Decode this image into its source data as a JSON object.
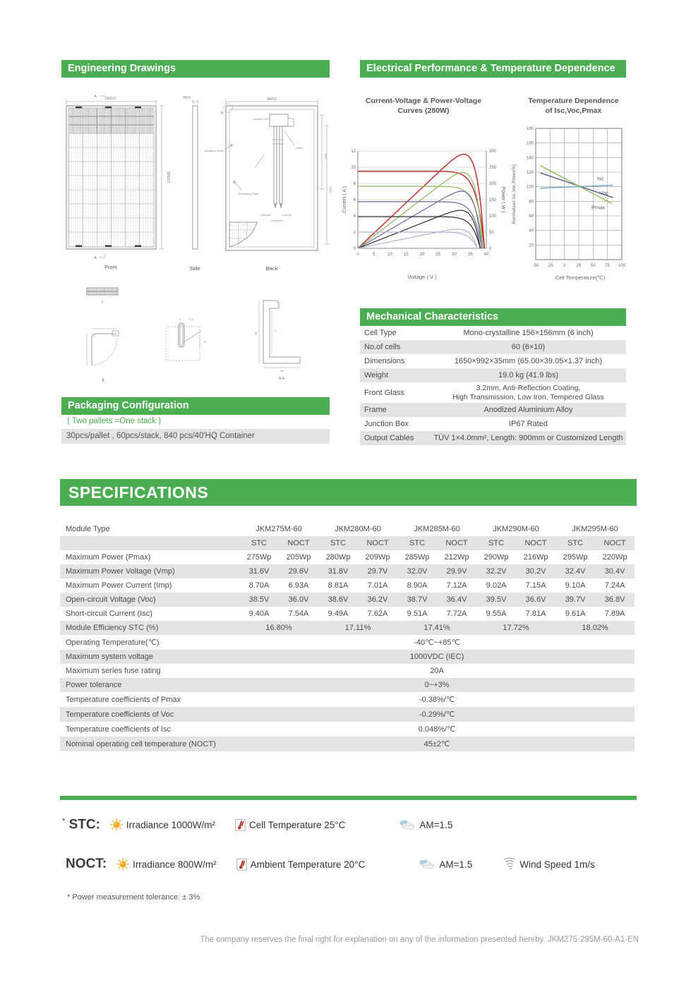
{
  "engineering": {
    "title": "Engineering Drawings",
    "front_label": "Front",
    "side_label": "Side",
    "back_label": "Back",
    "dims": {
      "front_w": "992±2",
      "front_h": "1650±2",
      "side_t": "35±1",
      "back_w": "942±2",
      "back_d1": "990",
      "back_d2": "1360",
      "a_top": "A",
      "a_bottom": "A",
      "sec1": "I",
      "sec2": "II",
      "d9": "9",
      "d55": "5.5",
      "d14": "14",
      "f35": "35",
      "f77": "7.7",
      "fb35": "35",
      "aa": "A-A"
    },
    "back_labels": {
      "junction": "Junction box",
      "label": "Label",
      "installing": "Installing Holes",
      "grounding": "Grounding Holes",
      "cathode": "Cathode -",
      "anode": "+ Anode",
      "connector": "Connector"
    }
  },
  "electrical": {
    "title": "Electrical Performance & Temperature Dependence",
    "iv_title": "Current-Voltage & Power-Voltage\nCurves (280W)",
    "temp_title": "Temperature Dependence\nof Isc,Voc,Pmax"
  },
  "mechanical": {
    "title": "Mechanical Characteristics",
    "rows": [
      {
        "label": "Cell Type",
        "value": "Mono-crystalline  156×156mm (6 inch)"
      },
      {
        "label": "No.of cells",
        "value": "60 (6×10)"
      },
      {
        "label": "Dimensions",
        "value": "1650×992×35mm (65.00×39.05×1.37 inch)"
      },
      {
        "label": "Weight",
        "value": "19.0 kg (41.9 lbs)"
      },
      {
        "label": "Front Glass",
        "value": "3.2mm, Anti-Reflection Coating,\nHigh Transmission, Low Iron, Tempered Glass"
      },
      {
        "label": "Frame",
        "value": "Anodized Aluminium Alloy"
      },
      {
        "label": "Junction Box",
        "value": "IP67 Rated"
      },
      {
        "label": "Output Cables",
        "value": "TÜV 1×4.0mm², Length: 900mm or Customized Length"
      }
    ]
  },
  "packaging": {
    "title": "Packaging Configuration",
    "note": "( Two pallets =One stack )",
    "detail": "30pcs/pallet , 60pcs/stack, 840 pcs/40'HQ Container"
  },
  "specifications": {
    "title": "SPECIFICATIONS",
    "module_type_label": "Module Type",
    "modules": [
      "JKM275M-60",
      "JKM280M-60",
      "JKM285M-60",
      "JKM290M-60",
      "JKM295M-60"
    ],
    "sub_headers": [
      "STC",
      "NOCT"
    ],
    "paired_rows": [
      {
        "label": "Maximum Power (Pmax)",
        "values": [
          "275Wp",
          "205Wp",
          "280Wp",
          "209Wp",
          "285Wp",
          "212Wp",
          "290Wp",
          "216Wp",
          "295Wp",
          "220Wp"
        ]
      },
      {
        "label": "Maximum Power Voltage (Vmp)",
        "values": [
          "31.6V",
          "29.6V",
          "31.8V",
          "29.7V",
          "32.0V",
          "29.9V",
          "32.2V",
          "30.2V",
          "32.4V",
          "30.4V"
        ]
      },
      {
        "label": "Maximum Power Current (Imp)",
        "values": [
          "8.70A",
          "6.93A",
          "8.81A",
          "7.01A",
          "8.90A",
          "7.12A",
          "9.02A",
          "7.15A",
          "9.10A",
          "7.24A"
        ]
      },
      {
        "label": "Open-circuit Voltage (Voc)",
        "values": [
          "38.5V",
          "36.0V",
          "38.6V",
          "36.2V",
          "38.7V",
          "36.4V",
          "39.5V",
          "36.6V",
          "39.7V",
          "36.8V"
        ]
      },
      {
        "label": "Short-circuit Current (Isc)",
        "values": [
          "9.40A",
          "7.54A",
          "9.49A",
          "7.62A",
          "9.51A",
          "7.72A",
          "9.55A",
          "7.81A",
          "9.61A",
          "7.89A"
        ]
      }
    ],
    "efficiency_row": {
      "label": "Module Efficiency STC (%)",
      "values": [
        "16.80%",
        "17.11%",
        "17.41%",
        "17.72%",
        "18.02%"
      ]
    },
    "single_rows": [
      {
        "label": "Operating Temperature(℃)",
        "value": "-40℃~+85℃"
      },
      {
        "label": "Maximum system voltage",
        "value": "1000VDC (IEC)"
      },
      {
        "label": "Maximum series fuse rating",
        "value": "20A"
      },
      {
        "label": "Power tolerance",
        "value": "0~+3%"
      },
      {
        "label": "Temperature coefficients of Pmax",
        "value": "-0.38%/℃"
      },
      {
        "label": "Temperature coefficients of Voc",
        "value": "-0.29%/℃"
      },
      {
        "label": "Temperature coefficients of Isc",
        "value": "0.048%/℃"
      },
      {
        "label": "Nominal operating cell temperature  (NOCT)",
        "value": "45±2℃"
      }
    ]
  },
  "test_conditions": {
    "stc": {
      "prefix": "*",
      "label": "STC:",
      "items": [
        {
          "icon": "sun-icon",
          "text": "Irradiance 1000W/m²"
        },
        {
          "icon": "thermometer-icon",
          "text": "Cell Temperature 25°C"
        },
        {
          "icon": "cloud-icon",
          "text": "AM=1.5"
        }
      ]
    },
    "noct": {
      "label": "NOCT:",
      "items": [
        {
          "icon": "sun-icon",
          "text": "Irradiance 800W/m²"
        },
        {
          "icon": "thermometer-icon",
          "text": "Ambient Temperature 20°C"
        },
        {
          "icon": "cloud-icon",
          "text": "AM=1.5"
        },
        {
          "icon": "wind-icon",
          "text": "Wind Speed 1m/s"
        }
      ]
    },
    "footnote": "*  Power measurement tolerance: ± 3%"
  },
  "footer": "The company reserves the final right for explanation on any of the information presented hereby. JKM275-295M-60-A1-EN",
  "colors": {
    "accent_green": "#4cae52",
    "row_gray": "#e4e4e4"
  },
  "chart_data": [
    {
      "type": "line",
      "title": "Current-Voltage & Power-Voltage Curves (280W)",
      "xlabel": "Voltage ( V )",
      "ylabel_left": "Current ( A )",
      "ylabel_right": "Power ( W )",
      "xlim": [
        0,
        40
      ],
      "ylim_left": [
        0,
        12
      ],
      "ylim_right": [
        0,
        300
      ],
      "x_ticks": [
        0,
        5,
        10,
        15,
        20,
        25,
        30,
        35,
        40
      ],
      "y_ticks_left": [
        0,
        2,
        4,
        6,
        8,
        10,
        12
      ],
      "y_ticks_right": [
        0,
        50,
        100,
        150,
        200,
        250,
        300
      ],
      "grid": "horizontal",
      "legend": "none",
      "series": [
        {
          "name": "curve-1",
          "color": "#c23a3c",
          "isc": 9.5,
          "voc": 39.4,
          "pmax": 290,
          "width": 1.6
        },
        {
          "name": "curve-2",
          "color": "#8cb85a",
          "isc": 7.65,
          "voc": 39.0,
          "pmax": 234,
          "width": 1.2
        },
        {
          "name": "curve-3",
          "color": "#6a679f",
          "isc": 5.75,
          "voc": 38.6,
          "pmax": 176,
          "width": 1.2
        },
        {
          "name": "curve-4",
          "color": "#2a2a2a",
          "isc": 3.9,
          "voc": 38.1,
          "pmax": 117,
          "width": 1.2
        },
        {
          "name": "curve-5",
          "color": "#b4b1ce",
          "isc": 2.0,
          "voc": 37.2,
          "pmax": 59,
          "width": 1.2
        }
      ]
    },
    {
      "type": "line",
      "title": "Temperature Dependence of Isc,Voc,Pmax",
      "xlabel": "Cell Temperature(℃)",
      "ylabel": "Normalized Isc,Voc,Pmax(%)",
      "xlim": [
        -50,
        100
      ],
      "ylim": [
        0,
        180
      ],
      "x_ticks": [
        -50,
        -25,
        0,
        25,
        50,
        75,
        100
      ],
      "y_ticks": [
        20,
        40,
        60,
        80,
        100,
        120,
        140,
        160,
        180
      ],
      "grid": "both",
      "legend": "inline-labels",
      "series": [
        {
          "name": "Isc",
          "color": "#7da7cd",
          "points": [
            [
              -42,
              98
            ],
            [
              85,
              102
            ]
          ],
          "label_x": 57,
          "label_y": 109
        },
        {
          "name": "Voc",
          "color": "#5a6395",
          "points": [
            [
              -42,
              119
            ],
            [
              85,
              85
            ]
          ],
          "label_x": 61,
          "label_y": 89
        },
        {
          "name": "Pmax",
          "color": "#8cbf57",
          "points": [
            [
              -42,
              129
            ],
            [
              82,
              77
            ]
          ],
          "label_x": 47,
          "label_y": 69
        }
      ]
    }
  ]
}
